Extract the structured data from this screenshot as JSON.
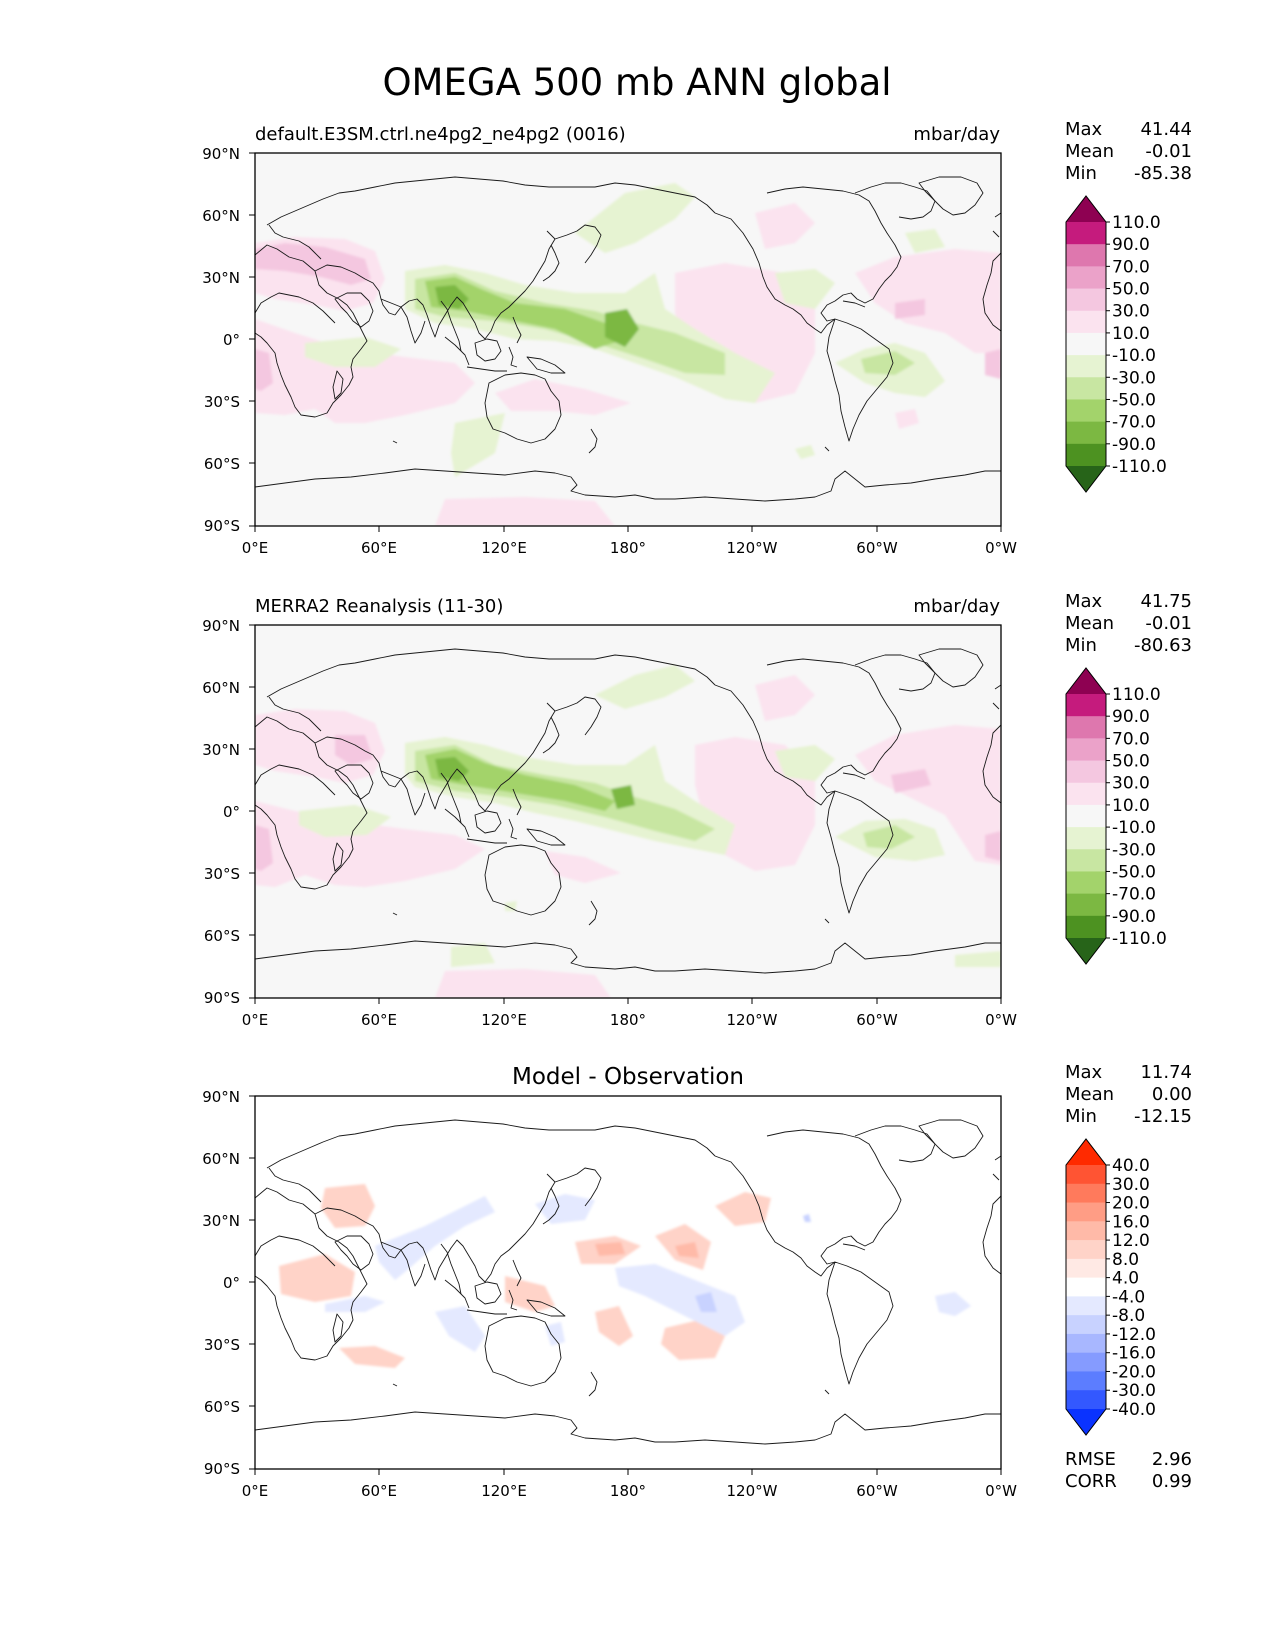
{
  "figure": {
    "title": "OMEGA 500 mb ANN global"
  },
  "axes": {
    "lat_ticks": [
      "90°N",
      "60°N",
      "30°N",
      "0°",
      "30°S",
      "60°S",
      "90°S"
    ],
    "lon_ticks": [
      "0°E",
      "60°E",
      "120°E",
      "180°",
      "120°W",
      "60°W",
      "0°W"
    ]
  },
  "panels": [
    {
      "id": "test",
      "title_left": "default.E3SM.ctrl.ne4pg2_ne4pg2 (0016)",
      "title_center": "",
      "units": "mbar/day",
      "stats": [
        {
          "label": "Max",
          "value": "41.44"
        },
        {
          "label": "Mean",
          "value": "-0.01"
        },
        {
          "label": "Min",
          "value": "-85.38"
        }
      ],
      "colorbar_labels": [
        "110.0",
        "90.0",
        "70.0",
        "50.0",
        "30.0",
        "10.0",
        "-10.0",
        "-30.0",
        "-50.0",
        "-70.0",
        "-90.0",
        "-110.0"
      ],
      "colorbar_colors": [
        "#8e0152",
        "#c51b7d",
        "#de77ae",
        "#eba2c9",
        "#f4c7e0",
        "#fbe3ef",
        "#f7f7f7",
        "#e6f3d2",
        "#c8e6a2",
        "#a3d36b",
        "#7cb842",
        "#4d9221",
        "#276419"
      ]
    },
    {
      "id": "ref",
      "title_left": "MERRA2 Reanalysis (11-30)",
      "title_center": "",
      "units": "mbar/day",
      "stats": [
        {
          "label": "Max",
          "value": "41.75"
        },
        {
          "label": "Mean",
          "value": "-0.01"
        },
        {
          "label": "Min",
          "value": "-80.63"
        }
      ],
      "colorbar_labels": [
        "110.0",
        "90.0",
        "70.0",
        "50.0",
        "30.0",
        "10.0",
        "-10.0",
        "-30.0",
        "-50.0",
        "-70.0",
        "-90.0",
        "-110.0"
      ],
      "colorbar_colors": [
        "#8e0152",
        "#c51b7d",
        "#de77ae",
        "#eba2c9",
        "#f4c7e0",
        "#fbe3ef",
        "#f7f7f7",
        "#e6f3d2",
        "#c8e6a2",
        "#a3d36b",
        "#7cb842",
        "#4d9221",
        "#276419"
      ]
    },
    {
      "id": "diff",
      "title_left": "",
      "title_center": "Model - Observation",
      "units": "",
      "stats": [
        {
          "label": "Max",
          "value": "11.74"
        },
        {
          "label": "Mean",
          "value": "0.00"
        },
        {
          "label": "Min",
          "value": "-12.15"
        }
      ],
      "colorbar_labels": [
        "40.0",
        "30.0",
        "20.0",
        "16.0",
        "12.0",
        "8.0",
        "4.0",
        "-4.0",
        "-8.0",
        "-12.0",
        "-16.0",
        "-20.0",
        "-30.0",
        "-40.0"
      ],
      "colorbar_colors": [
        "#ff2a00",
        "#ff5433",
        "#ff7a5c",
        "#ff9d85",
        "#ffbaa8",
        "#ffd3c8",
        "#ffe9e4",
        "#ffffff",
        "#e4e9ff",
        "#c8d2ff",
        "#a8b7ff",
        "#859bff",
        "#5c7dff",
        "#3358ff",
        "#0a33ff"
      ],
      "metrics": [
        {
          "label": "RMSE",
          "value": "2.96"
        },
        {
          "label": "CORR",
          "value": "0.99"
        }
      ]
    }
  ]
}
